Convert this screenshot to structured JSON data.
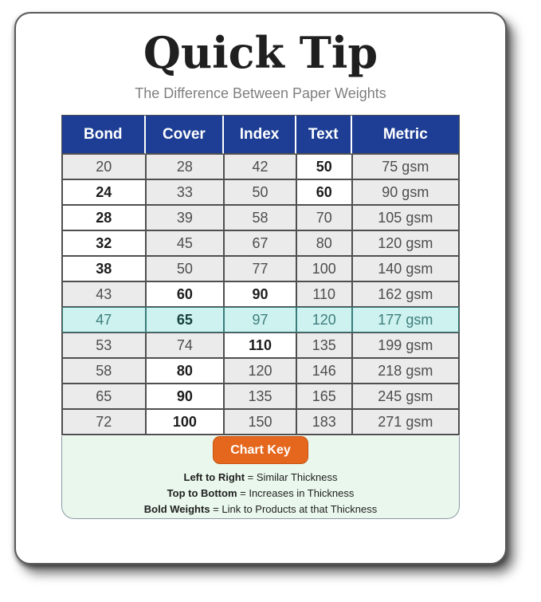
{
  "title": "Quick Tip",
  "subtitle": "The Difference Between Paper Weights",
  "table": {
    "columns": [
      "Bond",
      "Cover",
      "Index",
      "Text",
      "Metric"
    ],
    "rows": [
      {
        "highlight": false,
        "cells": [
          {
            "text": "20",
            "bold": false
          },
          {
            "text": "28",
            "bold": false
          },
          {
            "text": "42",
            "bold": false
          },
          {
            "text": "50",
            "bold": true
          },
          {
            "text": "75 gsm",
            "bold": false
          }
        ]
      },
      {
        "highlight": false,
        "cells": [
          {
            "text": "24",
            "bold": true
          },
          {
            "text": "33",
            "bold": false
          },
          {
            "text": "50",
            "bold": false
          },
          {
            "text": "60",
            "bold": true
          },
          {
            "text": "90 gsm",
            "bold": false
          }
        ]
      },
      {
        "highlight": false,
        "cells": [
          {
            "text": "28",
            "bold": true
          },
          {
            "text": "39",
            "bold": false
          },
          {
            "text": "58",
            "bold": false
          },
          {
            "text": "70",
            "bold": false
          },
          {
            "text": "105 gsm",
            "bold": false
          }
        ]
      },
      {
        "highlight": false,
        "cells": [
          {
            "text": "32",
            "bold": true
          },
          {
            "text": "45",
            "bold": false
          },
          {
            "text": "67",
            "bold": false
          },
          {
            "text": "80",
            "bold": false
          },
          {
            "text": "120 gsm",
            "bold": false
          }
        ]
      },
      {
        "highlight": false,
        "cells": [
          {
            "text": "38",
            "bold": true
          },
          {
            "text": "50",
            "bold": false
          },
          {
            "text": "77",
            "bold": false
          },
          {
            "text": "100",
            "bold": false
          },
          {
            "text": "140 gsm",
            "bold": false
          }
        ]
      },
      {
        "highlight": false,
        "cells": [
          {
            "text": "43",
            "bold": false
          },
          {
            "text": "60",
            "bold": true
          },
          {
            "text": "90",
            "bold": true
          },
          {
            "text": "110",
            "bold": false
          },
          {
            "text": "162 gsm",
            "bold": false
          }
        ]
      },
      {
        "highlight": true,
        "cells": [
          {
            "text": "47",
            "bold": false
          },
          {
            "text": "65",
            "bold": true
          },
          {
            "text": "97",
            "bold": false
          },
          {
            "text": "120",
            "bold": false
          },
          {
            "text": "177 gsm",
            "bold": false
          }
        ]
      },
      {
        "highlight": false,
        "cells": [
          {
            "text": "53",
            "bold": false
          },
          {
            "text": "74",
            "bold": false
          },
          {
            "text": "110",
            "bold": true
          },
          {
            "text": "135",
            "bold": false
          },
          {
            "text": "199 gsm",
            "bold": false
          }
        ]
      },
      {
        "highlight": false,
        "cells": [
          {
            "text": "58",
            "bold": false
          },
          {
            "text": "80",
            "bold": true
          },
          {
            "text": "120",
            "bold": false
          },
          {
            "text": "146",
            "bold": false
          },
          {
            "text": "218 gsm",
            "bold": false
          }
        ]
      },
      {
        "highlight": false,
        "cells": [
          {
            "text": "65",
            "bold": false
          },
          {
            "text": "90",
            "bold": true
          },
          {
            "text": "135",
            "bold": false
          },
          {
            "text": "165",
            "bold": false
          },
          {
            "text": "245 gsm",
            "bold": false
          }
        ]
      },
      {
        "highlight": false,
        "cells": [
          {
            "text": "72",
            "bold": false
          },
          {
            "text": "100",
            "bold": true
          },
          {
            "text": "150",
            "bold": false
          },
          {
            "text": "183",
            "bold": false
          },
          {
            "text": "271 gsm",
            "bold": false
          }
        ]
      }
    ]
  },
  "chart_key": {
    "button_label": "Chart Key",
    "entries": [
      {
        "bold": "Left to Right",
        "rest": "= Similar Thickness"
      },
      {
        "bold": "Top to Bottom",
        "rest": "= Increases in Thickness"
      },
      {
        "bold": "Bold Weights",
        "rest": "= Link to Products at that Thickness"
      }
    ]
  },
  "chart_data": {
    "type": "table",
    "title": "Quick Tip",
    "subtitle": "The Difference Between Paper Weights",
    "columns": [
      "Bond",
      "Cover",
      "Index",
      "Text",
      "Metric"
    ],
    "rows": [
      [
        20,
        28,
        42,
        50,
        "75 gsm"
      ],
      [
        24,
        33,
        50,
        60,
        "90 gsm"
      ],
      [
        28,
        39,
        58,
        70,
        "105 gsm"
      ],
      [
        32,
        45,
        67,
        80,
        "120 gsm"
      ],
      [
        38,
        50,
        77,
        100,
        "140 gsm"
      ],
      [
        43,
        60,
        90,
        110,
        "162 gsm"
      ],
      [
        47,
        65,
        97,
        120,
        "177 gsm"
      ],
      [
        53,
        74,
        110,
        135,
        "199 gsm"
      ],
      [
        58,
        80,
        120,
        146,
        "218 gsm"
      ],
      [
        65,
        90,
        135,
        165,
        "245 gsm"
      ],
      [
        72,
        100,
        150,
        183,
        "271 gsm"
      ]
    ],
    "highlighted_row_index": 6,
    "notes": [
      "Left to Right = Similar Thickness",
      "Top to Bottom = Increases in Thickness",
      "Bold Weights = Link to Products at that Thickness"
    ]
  },
  "colors": {
    "header_blue": "#1d3e94",
    "cell_gray": "#ebebeb",
    "border_dark": "#4f4f4f",
    "highlight_bg": "#cdf2ef",
    "highlight_text": "#3e7d7d",
    "orange": "#e5671d",
    "footer_green": "#e9f7ec",
    "subtitle_gray": "#7f7f7f",
    "title_color": "#1f1f1f"
  }
}
